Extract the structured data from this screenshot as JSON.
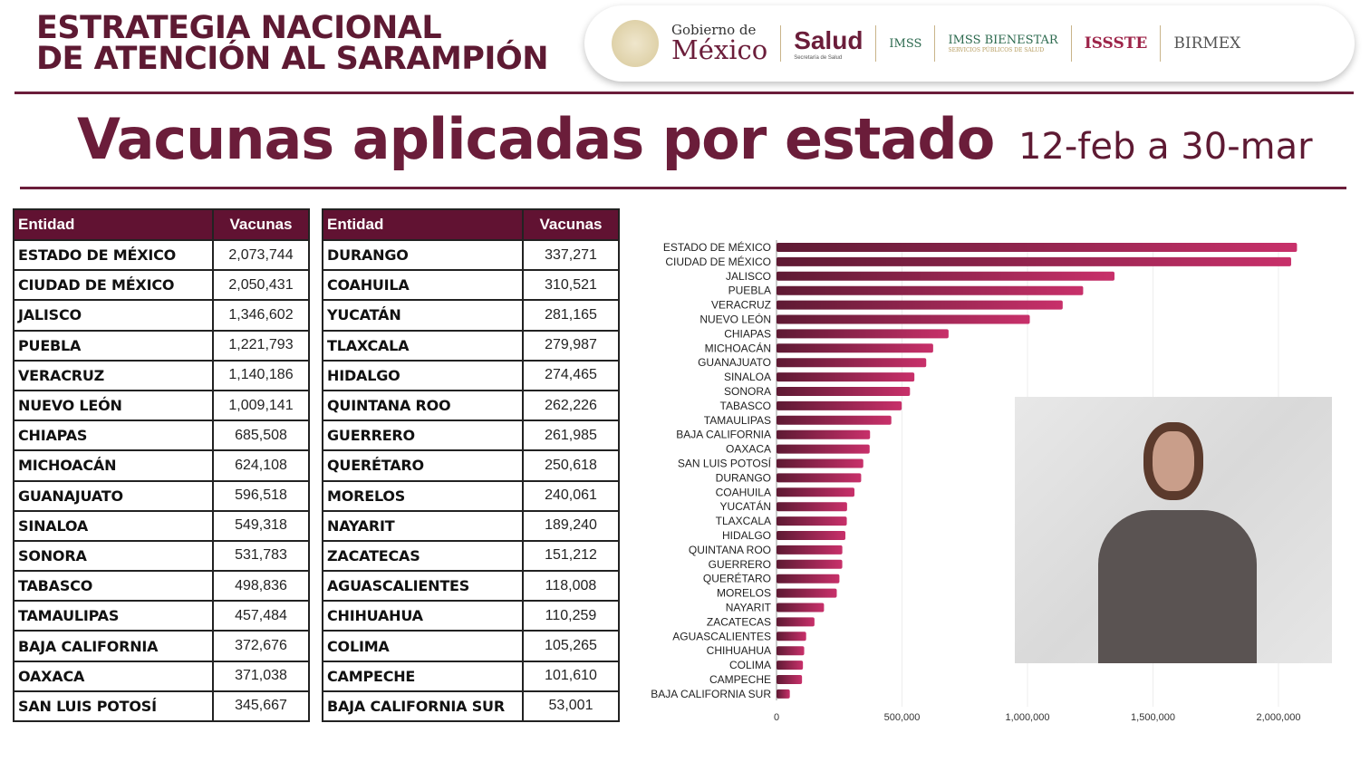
{
  "header": {
    "title_line1": "ESTRATEGIA NACIONAL",
    "title_line2": "DE ATENCIÓN AL SARAMPIÓN"
  },
  "logos": {
    "gob_a": "Gobierno de",
    "gob_b": "México",
    "salud": "Salud",
    "salud_sub": "Secretaría de Salud",
    "imss": "IMSS",
    "imss_bienestar": "IMSS BIENESTAR",
    "imss_bienestar_sub": "SERVICIOS PÚBLICOS DE SALUD",
    "issste": "ISSSTE",
    "birmex": "BIRMEX"
  },
  "slide": {
    "title": "Vacunas aplicadas por estado",
    "date_range": "12-feb a 30-mar"
  },
  "tables": {
    "headers": {
      "entity": "Entidad",
      "vaccines": "Vacunas"
    },
    "left": [
      [
        "ESTADO DE MÉXICO",
        "2,073,744"
      ],
      [
        "CIUDAD DE MÉXICO",
        "2,050,431"
      ],
      [
        "JALISCO",
        "1,346,602"
      ],
      [
        "PUEBLA",
        "1,221,793"
      ],
      [
        "VERACRUZ",
        "1,140,186"
      ],
      [
        "NUEVO LEÓN",
        "1,009,141"
      ],
      [
        "CHIAPAS",
        "685,508"
      ],
      [
        "MICHOACÁN",
        "624,108"
      ],
      [
        "GUANAJUATO",
        "596,518"
      ],
      [
        "SINALOA",
        "549,318"
      ],
      [
        "SONORA",
        "531,783"
      ],
      [
        "TABASCO",
        "498,836"
      ],
      [
        "TAMAULIPAS",
        "457,484"
      ],
      [
        "BAJA CALIFORNIA",
        "372,676"
      ],
      [
        "OAXACA",
        "371,038"
      ],
      [
        "SAN LUIS POTOSÍ",
        "345,667"
      ]
    ],
    "right": [
      [
        "DURANGO",
        "337,271"
      ],
      [
        "COAHUILA",
        "310,521"
      ],
      [
        "YUCATÁN",
        "281,165"
      ],
      [
        "TLAXCALA",
        "279,987"
      ],
      [
        "HIDALGO",
        "274,465"
      ],
      [
        "QUINTANA ROO",
        "262,226"
      ],
      [
        "GUERRERO",
        "261,985"
      ],
      [
        "QUERÉTARO",
        "250,618"
      ],
      [
        "MORELOS",
        "240,061"
      ],
      [
        "NAYARIT",
        "189,240"
      ],
      [
        "ZACATECAS",
        "151,212"
      ],
      [
        "AGUASCALIENTES",
        "118,008"
      ],
      [
        "CHIHUAHUA",
        "110,259"
      ],
      [
        "COLIMA",
        "105,265"
      ],
      [
        "CAMPECHE",
        "101,610"
      ],
      [
        "BAJA CALIFORNIA SUR",
        "53,001"
      ]
    ]
  },
  "chart_data": {
    "type": "bar",
    "orientation": "horizontal",
    "title": "",
    "xlabel": "",
    "ylabel": "",
    "categories": [
      "ESTADO DE MÉXICO",
      "CIUDAD DE MÉXICO",
      "JALISCO",
      "PUEBLA",
      "VERACRUZ",
      "NUEVO LEÓN",
      "CHIAPAS",
      "MICHOACÁN",
      "GUANAJUATO",
      "SINALOA",
      "SONORA",
      "TABASCO",
      "TAMAULIPAS",
      "BAJA CALIFORNIA",
      "OAXACA",
      "SAN LUIS POTOSÍ",
      "DURANGO",
      "COAHUILA",
      "YUCATÁN",
      "TLAXCALA",
      "HIDALGO",
      "QUINTANA ROO",
      "GUERRERO",
      "QUERÉTARO",
      "MORELOS",
      "NAYARIT",
      "ZACATECAS",
      "AGUASCALIENTES",
      "CHIHUAHUA",
      "COLIMA",
      "CAMPECHE",
      "BAJA CALIFORNIA SUR"
    ],
    "values": [
      2073744,
      2050431,
      1346602,
      1221793,
      1140186,
      1009141,
      685508,
      624108,
      596518,
      549318,
      531783,
      498836,
      457484,
      372676,
      371038,
      345667,
      337271,
      310521,
      281165,
      279987,
      274465,
      262226,
      261985,
      250618,
      240061,
      189240,
      151212,
      118008,
      110259,
      105265,
      101610,
      53001
    ],
    "xlim": [
      0,
      2200000
    ],
    "xticks": [
      0,
      500000,
      1000000,
      1500000,
      2000000
    ],
    "xtick_labels": [
      "0",
      "500,000",
      "1,000,000",
      "1,500,000",
      "2,000,000"
    ],
    "grid": true,
    "bar_colors": [
      "#5e1a33",
      "#c8306a"
    ]
  }
}
